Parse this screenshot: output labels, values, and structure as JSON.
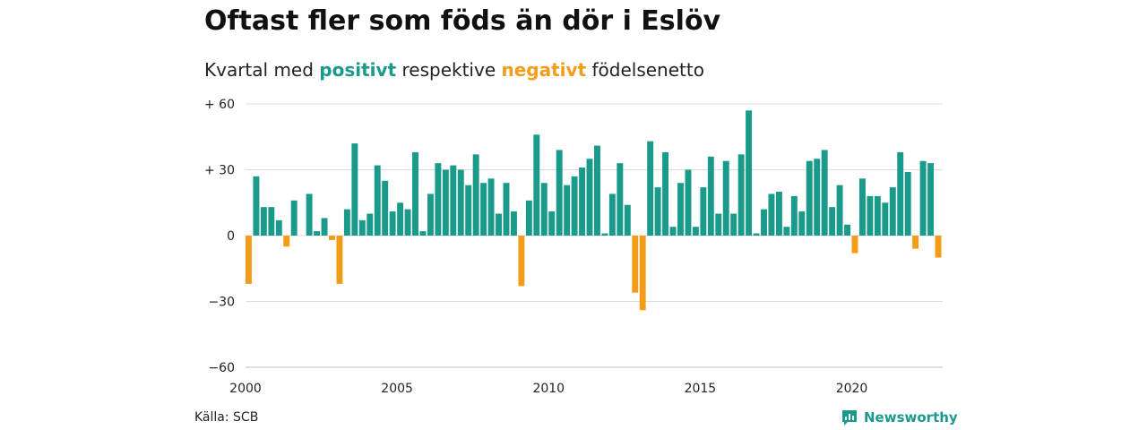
{
  "title": "Oftast fler som föds än dör i Eslöv",
  "subtitle": {
    "prefix": "Kvartal med",
    "positive_word": "positivt",
    "middle": "respektive",
    "negative_word": "negativt",
    "suffix": "födelsenetto"
  },
  "source": "Källa: SCB",
  "brand": {
    "name": "Newsworthy",
    "icon": "newsworthy-logo-icon"
  },
  "colors": {
    "positive": "#1a9a8a",
    "negative": "#f39c1a",
    "grid": "#dddddd",
    "axis": "#bbbbbb"
  },
  "chart_data": {
    "type": "bar",
    "title": "Oftast fler som föds än dör i Eslöv",
    "subtitle": "Kvartal med positivt respektive negativt födelsenetto",
    "x_start": "2000 Q1",
    "x_ticks": [
      {
        "label": "2000",
        "quarter_index": 0
      },
      {
        "label": "2005",
        "quarter_index": 20
      },
      {
        "label": "2010",
        "quarter_index": 40
      },
      {
        "label": "2015",
        "quarter_index": 60
      },
      {
        "label": "2020",
        "quarter_index": 80
      }
    ],
    "y_ticks": [
      {
        "value": 60,
        "label": "+ 60"
      },
      {
        "value": 30,
        "label": "+ 30"
      },
      {
        "value": 0,
        "label": "0"
      },
      {
        "value": -30,
        "label": "−30"
      },
      {
        "value": -60,
        "label": "−60"
      }
    ],
    "ylim": [
      -60,
      60
    ],
    "grid": true,
    "values": [
      -22,
      27,
      13,
      13,
      7,
      -5,
      16,
      0,
      19,
      2,
      8,
      -2,
      -22,
      12,
      42,
      7,
      10,
      32,
      25,
      11,
      15,
      12,
      38,
      2,
      19,
      33,
      30,
      32,
      30,
      23,
      37,
      24,
      26,
      10,
      24,
      11,
      -23,
      16,
      46,
      24,
      11,
      39,
      23,
      27,
      31,
      35,
      41,
      1,
      19,
      33,
      14,
      -26,
      -34,
      43,
      22,
      38,
      4,
      24,
      30,
      4,
      22,
      36,
      10,
      34,
      10,
      37,
      57,
      1,
      12,
      19,
      20,
      4,
      18,
      11,
      34,
      35,
      39,
      13,
      23,
      5,
      -8,
      26,
      18,
      18,
      15,
      22,
      38,
      29,
      -6,
      34,
      33,
      -10
    ]
  }
}
